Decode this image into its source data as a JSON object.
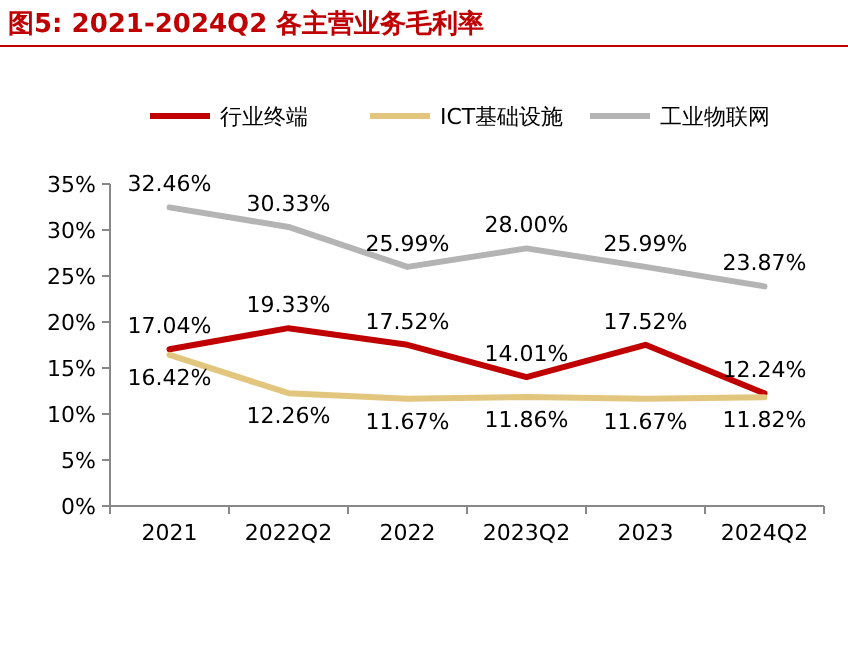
{
  "chart_data": {
    "type": "line",
    "title": "图5:  2021-2024Q2 各主营业务毛利率",
    "categories": [
      "2021",
      "2022Q2",
      "2022",
      "2023Q2",
      "2023",
      "2024Q2"
    ],
    "series": [
      {
        "name": "行业终端",
        "color": "#c00000",
        "values": [
          17.04,
          19.33,
          17.52,
          14.01,
          17.52,
          12.24
        ],
        "value_labels": [
          "17.04%",
          "19.33%",
          "17.52%",
          "14.01%",
          "17.52%",
          "12.24%"
        ]
      },
      {
        "name": "ICT基础设施",
        "color": "#e3c67e",
        "values": [
          16.42,
          12.26,
          11.67,
          11.86,
          11.67,
          11.82
        ],
        "value_labels": [
          "16.42%",
          "12.26%",
          "11.67%",
          "11.86%",
          "11.67%",
          "11.82%"
        ]
      },
      {
        "name": "工业物联网",
        "color": "#b4b4b4",
        "values": [
          32.46,
          30.33,
          25.99,
          28.0,
          25.99,
          23.87
        ],
        "value_labels": [
          "32.46%",
          "30.33%",
          "25.99%",
          "28.00%",
          "25.99%",
          "23.87%"
        ]
      }
    ],
    "ylim": [
      0,
      35
    ],
    "yticks": [
      {
        "value": 0,
        "label": "0%"
      },
      {
        "value": 5,
        "label": "5%"
      },
      {
        "value": 10,
        "label": "10%"
      },
      {
        "value": 15,
        "label": "15%"
      },
      {
        "value": 20,
        "label": "20%"
      },
      {
        "value": 25,
        "label": "25%"
      },
      {
        "value": 30,
        "label": "30%"
      },
      {
        "value": 35,
        "label": "35%"
      }
    ],
    "legend": "top"
  }
}
